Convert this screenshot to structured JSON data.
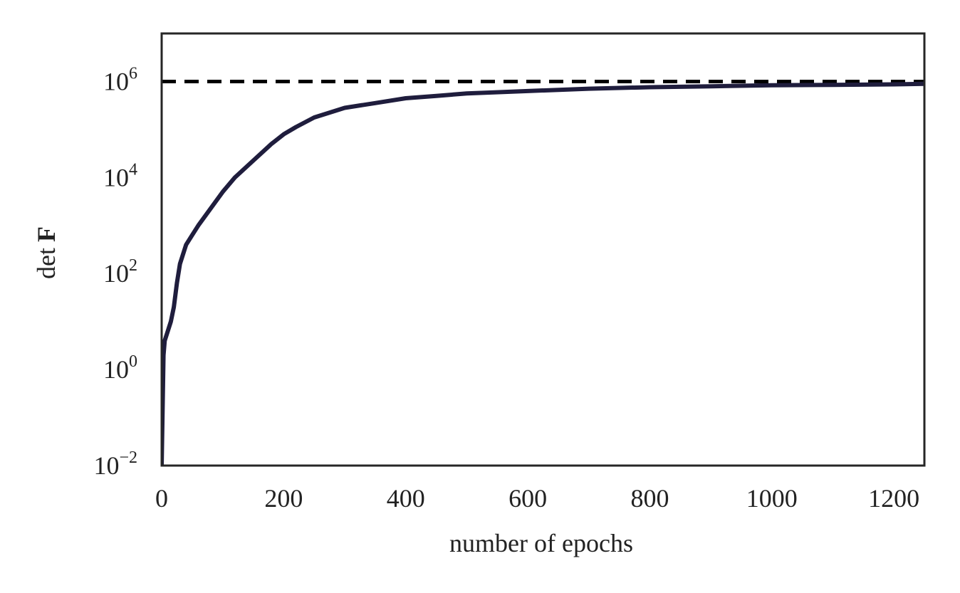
{
  "chart_data": {
    "type": "line",
    "title": "",
    "xlabel": "number of epochs",
    "ylabel": {
      "prefix": "det",
      "symbol": "F"
    },
    "xlim": [
      0,
      1250
    ],
    "ylim": [
      -2,
      7
    ],
    "yscale": "log10",
    "grid": false,
    "legend": "none",
    "xticks": [
      {
        "value": 0,
        "label": "0"
      },
      {
        "value": 200,
        "label": "200"
      },
      {
        "value": 400,
        "label": "400"
      },
      {
        "value": 600,
        "label": "600"
      },
      {
        "value": 800,
        "label": "800"
      },
      {
        "value": 1000,
        "label": "1000"
      },
      {
        "value": 1200,
        "label": "1200"
      }
    ],
    "yticks": [
      {
        "exponent": -2,
        "base": "10",
        "exp_label": "−2"
      },
      {
        "exponent": 0,
        "base": "10",
        "exp_label": "0"
      },
      {
        "exponent": 2,
        "base": "10",
        "exp_label": "2"
      },
      {
        "exponent": 4,
        "base": "10",
        "exp_label": "4"
      },
      {
        "exponent": 6,
        "base": "10",
        "exp_label": "6"
      }
    ],
    "series": [
      {
        "style": "solid",
        "color": "#1f1d3d",
        "x": [
          0,
          3,
          5,
          10,
          15,
          20,
          25,
          30,
          40,
          50,
          60,
          80,
          100,
          120,
          150,
          180,
          200,
          220,
          250,
          300,
          350,
          400,
          450,
          500,
          600,
          700,
          800,
          900,
          1000,
          1100,
          1200,
          1250
        ],
        "log10_y": [
          -2.0,
          0.3,
          0.6,
          0.8,
          1.0,
          1.3,
          1.8,
          2.2,
          2.6,
          2.8,
          3.0,
          3.35,
          3.7,
          4.0,
          4.35,
          4.7,
          4.9,
          5.05,
          5.25,
          5.45,
          5.55,
          5.65,
          5.7,
          5.75,
          5.8,
          5.85,
          5.88,
          5.9,
          5.92,
          5.93,
          5.94,
          5.95
        ]
      }
    ],
    "reference_line": {
      "log10_y": 6.0,
      "style": "dashed",
      "color": "#000000"
    }
  }
}
